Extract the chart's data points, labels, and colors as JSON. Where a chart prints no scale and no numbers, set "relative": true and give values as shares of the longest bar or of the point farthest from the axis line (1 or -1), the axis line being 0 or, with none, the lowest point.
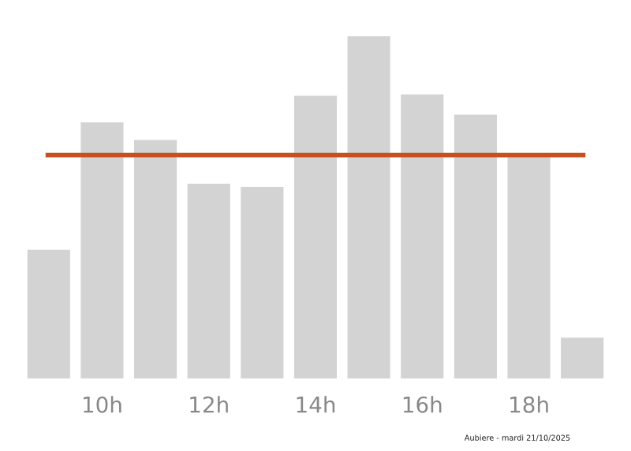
{
  "chart_data": {
    "type": "bar",
    "relative": true,
    "categories": [
      null,
      "10h",
      null,
      "12h",
      null,
      "14h",
      null,
      "16h",
      null,
      "18h",
      null
    ],
    "values": [
      0.376,
      0.748,
      0.697,
      0.569,
      0.56,
      0.826,
      1.0,
      0.83,
      0.771,
      0.651,
      0.119
    ],
    "color": "#d3d3d3",
    "ref_lines": [
      {
        "axis": "y",
        "value": 0.653,
        "color": "#c8501e"
      }
    ],
    "annotations": [
      "Aubiere - mardi 21/10/2025"
    ],
    "grid": false,
    "legend": false
  }
}
